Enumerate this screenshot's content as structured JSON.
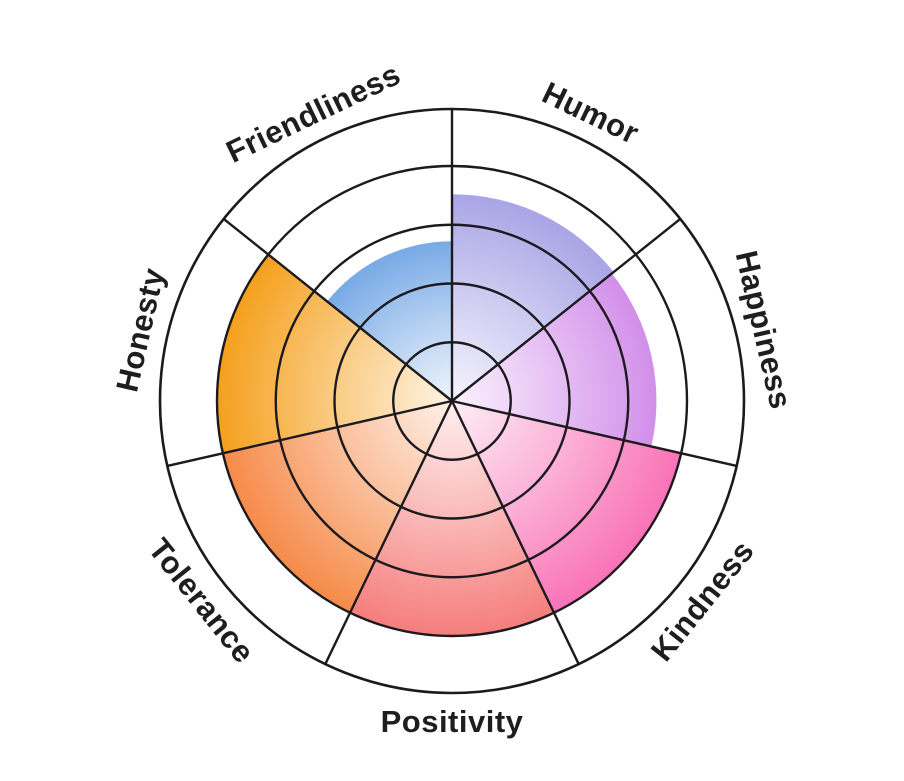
{
  "page": {
    "background_color": "#ffffff"
  },
  "chart_data": {
    "type": "polar_sector_gauge",
    "description": "Circular personality trait wheel with 7 equal sectors; each sector is filled from the center outward proportionally to its value, over 4 concentric grid rings.",
    "direction": "clockwise",
    "start_angle_deg": 0,
    "value_max": 1.0,
    "rings": [
      0.25,
      0.5,
      0.75,
      1.0
    ],
    "grid_color": "#1c1a1e",
    "label_color": "#1e1e1e",
    "sectors": [
      {
        "label": "Humor",
        "value": 0.88,
        "color": "#a9a5e6"
      },
      {
        "label": "Happiness",
        "value": 0.87,
        "color": "#d28fea"
      },
      {
        "label": "Kindness",
        "value": 1.0,
        "color": "#f973b6"
      },
      {
        "label": "Positivity",
        "value": 1.0,
        "color": "#f57e7c"
      },
      {
        "label": "Tolerance",
        "value": 1.0,
        "color": "#f68b49"
      },
      {
        "label": "Honesty",
        "value": 1.0,
        "color": "#f5a01d"
      },
      {
        "label": "Friendliness",
        "value": 0.68,
        "color": "#78aae6"
      }
    ]
  }
}
